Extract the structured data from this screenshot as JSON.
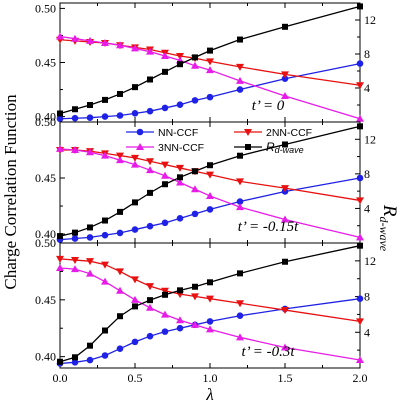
{
  "chart_data": {
    "type": "line",
    "ylabel": "Charge Correlation Function",
    "xlabel": "λ",
    "y2label_main": "R",
    "y2label_sub": "d-wave",
    "x_ticks": [
      "0.0",
      "0.5",
      "1.0",
      "1.5",
      "2.0"
    ],
    "xlim": [
      0,
      2
    ],
    "legend": [
      {
        "label": "NN-CCF",
        "color": "#1f22e6",
        "marker": "circle"
      },
      {
        "label": "2NN-CCF",
        "color": "#e81010",
        "marker": "triangle-down"
      },
      {
        "label": "3NN-CCF",
        "color": "#e81ce8",
        "marker": "triangle-up"
      },
      {
        "label_main": "R",
        "label_sub": "d-wave",
        "color": "#000000",
        "marker": "square"
      }
    ],
    "panels": [
      {
        "label": "t’ = 0",
        "ylim": [
          0.395,
          0.505
        ],
        "y_ticks": [
          "0.40",
          "0.45",
          "0.50"
        ],
        "y2lim": [
          0,
          14
        ],
        "y2_ticks": [
          "4",
          "8",
          "12"
        ],
        "x": [
          0,
          0.1,
          0.2,
          0.3,
          0.4,
          0.5,
          0.6,
          0.7,
          0.8,
          0.9,
          1.0,
          1.2,
          1.5,
          2.0
        ],
        "series": [
          {
            "name": "NN-CCF",
            "values": [
              0.398,
              0.3985,
              0.399,
              0.4,
              0.401,
              0.403,
              0.405,
              0.408,
              0.411,
              0.415,
              0.418,
              0.425,
              0.435,
              0.449
            ]
          },
          {
            "name": "2NN-CCF",
            "values": [
              0.471,
              0.47,
              0.469,
              0.468,
              0.466,
              0.464,
              0.462,
              0.459,
              0.456,
              0.454,
              0.451,
              0.446,
              0.439,
              0.429
            ]
          },
          {
            "name": "3NN-CCF",
            "values": [
              0.474,
              0.472,
              0.47,
              0.468,
              0.466,
              0.463,
              0.46,
              0.456,
              0.452,
              0.447,
              0.443,
              0.433,
              0.419,
              0.398
            ]
          },
          {
            "name": "R d-wave",
            "values": [
              1.0,
              1.5,
              2.0,
              2.6,
              3.3,
              4.1,
              5.0,
              5.9,
              6.8,
              7.6,
              8.4,
              9.7,
              11.2,
              13.6
            ]
          }
        ]
      },
      {
        "label": "t’ = -0.15t",
        "ylim": [
          0.392,
          0.5
        ],
        "y_ticks": [
          "0.40",
          "0.45",
          "0.50"
        ],
        "y2lim": [
          0,
          14
        ],
        "y2_ticks": [
          "4",
          "8",
          "12"
        ],
        "x": [
          0,
          0.1,
          0.2,
          0.3,
          0.4,
          0.5,
          0.6,
          0.7,
          0.8,
          0.9,
          1.0,
          1.2,
          1.5,
          2.0
        ],
        "series": [
          {
            "name": "NN-CCF",
            "values": [
              0.395,
              0.396,
              0.397,
              0.399,
              0.401,
              0.404,
              0.407,
              0.41,
              0.414,
              0.418,
              0.422,
              0.429,
              0.438,
              0.45
            ]
          },
          {
            "name": "2NN-CCF",
            "values": [
              0.475,
              0.475,
              0.474,
              0.472,
              0.47,
              0.468,
              0.465,
              0.462,
              0.459,
              0.456,
              0.453,
              0.447,
              0.441,
              0.43
            ]
          },
          {
            "name": "3NN-CCF",
            "values": [
              0.476,
              0.475,
              0.473,
              0.47,
              0.466,
              0.462,
              0.457,
              0.452,
              0.446,
              0.44,
              0.434,
              0.424,
              0.413,
              0.397
            ]
          },
          {
            "name": "R d-wave",
            "values": [
              0.8,
              1.2,
              1.8,
              2.6,
              3.6,
              4.7,
              5.8,
              6.8,
              7.6,
              8.3,
              9.0,
              10.1,
              11.4,
              13.5
            ]
          }
        ]
      },
      {
        "label": "t’ = -0.3t",
        "ylim": [
          0.39,
          0.5
        ],
        "y_ticks": [
          "0.40",
          "0.45",
          "0.50"
        ],
        "y2lim": [
          0,
          14
        ],
        "y2_ticks": [
          "4",
          "8",
          "12"
        ],
        "x": [
          0,
          0.1,
          0.2,
          0.3,
          0.4,
          0.5,
          0.6,
          0.7,
          0.8,
          0.9,
          1.0,
          1.2,
          1.5,
          2.0
        ],
        "series": [
          {
            "name": "NN-CCF",
            "values": [
              0.394,
              0.395,
              0.397,
              0.401,
              0.407,
              0.413,
              0.418,
              0.422,
              0.425,
              0.428,
              0.431,
              0.436,
              0.442,
              0.451
            ]
          },
          {
            "name": "2NN-CCF",
            "values": [
              0.486,
              0.485,
              0.484,
              0.481,
              0.475,
              0.468,
              0.462,
              0.458,
              0.455,
              0.453,
              0.451,
              0.447,
              0.441,
              0.431
            ]
          },
          {
            "name": "3NN-CCF",
            "values": [
              0.478,
              0.477,
              0.473,
              0.466,
              0.458,
              0.45,
              0.443,
              0.437,
              0.432,
              0.428,
              0.424,
              0.417,
              0.408,
              0.397
            ]
          },
          {
            "name": "R d-wave",
            "values": [
              0.7,
              1.2,
              2.5,
              4.2,
              5.8,
              6.9,
              7.6,
              8.2,
              8.7,
              9.1,
              9.6,
              10.6,
              11.9,
              13.7
            ]
          }
        ]
      }
    ]
  }
}
